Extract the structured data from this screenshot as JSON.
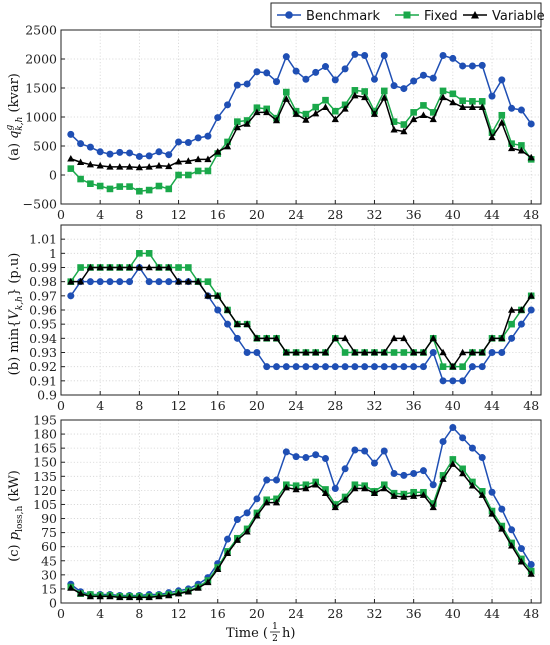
{
  "legend": [
    {
      "name": "Benchmark",
      "color": "#1f4fb4",
      "marker": "circle"
    },
    {
      "name": "Fixed",
      "color": "#1aa84a",
      "marker": "square"
    },
    {
      "name": "Variable",
      "color": "#000000",
      "marker": "triangle"
    }
  ],
  "xlabel_prefix": "Time (",
  "xlabel_frac_num": "1",
  "xlabel_frac_den": "2",
  "xlabel_suffix": " h)",
  "chart_data": [
    {
      "type": "line",
      "ylabel_prefix": "(a) ",
      "ylabel_var": "q",
      "ylabel_sup": "g",
      "ylabel_sub": "k,h",
      "ylabel_unit": " (kvar)",
      "xlim": [
        0,
        49
      ],
      "ylim": [
        -500,
        2500
      ],
      "xticks": [
        0,
        4,
        8,
        12,
        16,
        20,
        24,
        28,
        32,
        36,
        40,
        44,
        48
      ],
      "yticks": [
        -500,
        0,
        500,
        1000,
        1500,
        2000,
        2500
      ],
      "ytick_labels": [
        "−500",
        "0",
        "500",
        "1000",
        "1500",
        "2000",
        "2500"
      ],
      "grid": true,
      "x": [
        1,
        2,
        3,
        4,
        5,
        6,
        7,
        8,
        9,
        10,
        11,
        12,
        13,
        14,
        15,
        16,
        17,
        18,
        19,
        20,
        21,
        22,
        23,
        24,
        25,
        26,
        27,
        28,
        29,
        30,
        31,
        32,
        33,
        34,
        35,
        36,
        37,
        38,
        39,
        40,
        41,
        42,
        43,
        44,
        45,
        46,
        47,
        48
      ],
      "series": [
        {
          "name": "Benchmark",
          "values": [
            700,
            540,
            480,
            400,
            360,
            390,
            380,
            320,
            330,
            400,
            350,
            570,
            560,
            640,
            670,
            990,
            1210,
            1550,
            1570,
            1780,
            1760,
            1610,
            2040,
            1790,
            1650,
            1770,
            1870,
            1640,
            1830,
            2080,
            2060,
            1650,
            2060,
            1540,
            1490,
            1620,
            1720,
            1670,
            2060,
            2010,
            1880,
            1880,
            1890,
            1360,
            1640,
            1150,
            1120,
            880
          ]
        },
        {
          "name": "Fixed",
          "values": [
            110,
            -70,
            -150,
            -190,
            -240,
            -200,
            -200,
            -280,
            -260,
            -190,
            -240,
            0,
            0,
            70,
            70,
            370,
            570,
            920,
            940,
            1160,
            1140,
            980,
            1430,
            1100,
            1050,
            1170,
            1290,
            1100,
            1210,
            1460,
            1440,
            1100,
            1450,
            920,
            870,
            1080,
            1200,
            1080,
            1450,
            1400,
            1280,
            1270,
            1270,
            730,
            1030,
            540,
            510,
            270
          ]
        },
        {
          "name": "Variable",
          "values": [
            280,
            220,
            180,
            160,
            140,
            140,
            140,
            130,
            140,
            160,
            150,
            230,
            240,
            270,
            270,
            400,
            490,
            820,
            880,
            1080,
            1080,
            940,
            1310,
            1050,
            950,
            1060,
            1170,
            960,
            1140,
            1370,
            1340,
            1050,
            1330,
            780,
            750,
            960,
            1030,
            960,
            1340,
            1250,
            1170,
            1170,
            1170,
            650,
            900,
            460,
            420,
            300
          ]
        }
      ]
    },
    {
      "type": "line",
      "ylabel_prefix": "(b) min",
      "ylabel_var": "V",
      "ylabel_sub": "k,h",
      "ylabel_unit": " (p.u)",
      "xlim": [
        0,
        49
      ],
      "ylim": [
        0.9,
        1.02
      ],
      "xticks": [
        0,
        4,
        8,
        12,
        16,
        20,
        24,
        28,
        32,
        36,
        40,
        44,
        48
      ],
      "yticks": [
        0.9,
        0.91,
        0.92,
        0.93,
        0.94,
        0.95,
        0.96,
        0.97,
        0.98,
        0.99,
        1.0,
        1.01
      ],
      "ytick_labels": [
        "0.9",
        "0.91",
        "0.92",
        "0.93",
        "0.94",
        "0.95",
        "0.96",
        "0.97",
        "0.98",
        "0.99",
        "1",
        "1.01"
      ],
      "grid": true,
      "x": [
        1,
        2,
        3,
        4,
        5,
        6,
        7,
        8,
        9,
        10,
        11,
        12,
        13,
        14,
        15,
        16,
        17,
        18,
        19,
        20,
        21,
        22,
        23,
        24,
        25,
        26,
        27,
        28,
        29,
        30,
        31,
        32,
        33,
        34,
        35,
        36,
        37,
        38,
        39,
        40,
        41,
        42,
        43,
        44,
        45,
        46,
        47,
        48
      ],
      "series": [
        {
          "name": "Benchmark",
          "values": [
            0.97,
            0.98,
            0.98,
            0.98,
            0.98,
            0.98,
            0.98,
            0.99,
            0.98,
            0.98,
            0.98,
            0.98,
            0.98,
            0.98,
            0.97,
            0.96,
            0.95,
            0.94,
            0.93,
            0.93,
            0.92,
            0.92,
            0.92,
            0.92,
            0.92,
            0.92,
            0.92,
            0.92,
            0.92,
            0.92,
            0.92,
            0.92,
            0.92,
            0.92,
            0.92,
            0.92,
            0.92,
            0.93,
            0.91,
            0.91,
            0.91,
            0.92,
            0.92,
            0.93,
            0.93,
            0.94,
            0.95,
            0.96
          ]
        },
        {
          "name": "Fixed",
          "values": [
            0.98,
            0.99,
            0.99,
            0.99,
            0.99,
            0.99,
            0.99,
            1.0,
            1.0,
            0.99,
            0.99,
            0.99,
            0.99,
            0.98,
            0.98,
            0.97,
            0.96,
            0.95,
            0.95,
            0.94,
            0.94,
            0.94,
            0.93,
            0.93,
            0.93,
            0.93,
            0.93,
            0.94,
            0.93,
            0.93,
            0.93,
            0.93,
            0.93,
            0.93,
            0.93,
            0.93,
            0.93,
            0.94,
            0.92,
            0.92,
            0.92,
            0.93,
            0.93,
            0.94,
            0.94,
            0.95,
            0.96,
            0.97
          ]
        },
        {
          "name": "Variable",
          "values": [
            0.98,
            0.98,
            0.99,
            0.99,
            0.99,
            0.99,
            0.99,
            0.99,
            0.99,
            0.99,
            0.99,
            0.98,
            0.98,
            0.98,
            0.97,
            0.97,
            0.96,
            0.95,
            0.95,
            0.94,
            0.94,
            0.94,
            0.93,
            0.93,
            0.93,
            0.93,
            0.93,
            0.94,
            0.94,
            0.93,
            0.93,
            0.93,
            0.93,
            0.94,
            0.94,
            0.93,
            0.93,
            0.94,
            0.93,
            0.92,
            0.93,
            0.93,
            0.93,
            0.94,
            0.94,
            0.96,
            0.96,
            0.97
          ]
        }
      ]
    },
    {
      "type": "line",
      "ylabel_prefix": "(c) ",
      "ylabel_var": "p",
      "ylabel_sub": "loss,h",
      "ylabel_unit": " (kW)",
      "xlim": [
        0,
        49
      ],
      "ylim": [
        0,
        195
      ],
      "xticks": [
        0,
        4,
        8,
        12,
        16,
        20,
        24,
        28,
        32,
        36,
        40,
        44,
        48
      ],
      "yticks": [
        0,
        15,
        30,
        45,
        60,
        75,
        90,
        105,
        120,
        135,
        150,
        165,
        180,
        195
      ],
      "ytick_labels": [
        "0",
        "15",
        "30",
        "45",
        "60",
        "75",
        "90",
        "105",
        "120",
        "135",
        "150",
        "165",
        "180",
        "195"
      ],
      "grid": true,
      "x": [
        1,
        2,
        3,
        4,
        5,
        6,
        7,
        8,
        9,
        10,
        11,
        12,
        13,
        14,
        15,
        16,
        17,
        18,
        19,
        20,
        21,
        22,
        23,
        24,
        25,
        26,
        27,
        28,
        29,
        30,
        31,
        32,
        33,
        34,
        35,
        36,
        37,
        38,
        39,
        40,
        41,
        42,
        43,
        44,
        45,
        46,
        47,
        48
      ],
      "series": [
        {
          "name": "Benchmark",
          "values": [
            20,
            12,
            9,
            9,
            9,
            8,
            8,
            8,
            9,
            9,
            11,
            13,
            15,
            20,
            27,
            42,
            68,
            89,
            96,
            111,
            131,
            131,
            161,
            156,
            155,
            158,
            154,
            122,
            143,
            163,
            162,
            149,
            162,
            138,
            136,
            138,
            141,
            126,
            172,
            187,
            176,
            165,
            155,
            118,
            100,
            78,
            58,
            41
          ]
        },
        {
          "name": "Fixed",
          "values": [
            17,
            10,
            9,
            8,
            8,
            7,
            7,
            7,
            7,
            8,
            9,
            11,
            13,
            17,
            24,
            38,
            55,
            69,
            79,
            96,
            110,
            111,
            126,
            125,
            126,
            129,
            121,
            105,
            113,
            126,
            125,
            119,
            126,
            117,
            116,
            118,
            118,
            106,
            136,
            153,
            143,
            129,
            119,
            98,
            82,
            64,
            47,
            34
          ]
        },
        {
          "name": "Variable",
          "values": [
            16,
            10,
            7,
            7,
            7,
            6,
            6,
            6,
            6,
            7,
            8,
            10,
            12,
            16,
            22,
            36,
            53,
            67,
            76,
            93,
            107,
            107,
            123,
            121,
            122,
            126,
            117,
            102,
            110,
            122,
            122,
            117,
            122,
            114,
            113,
            114,
            115,
            102,
            132,
            148,
            138,
            125,
            115,
            95,
            79,
            61,
            44,
            31
          ]
        }
      ]
    }
  ]
}
